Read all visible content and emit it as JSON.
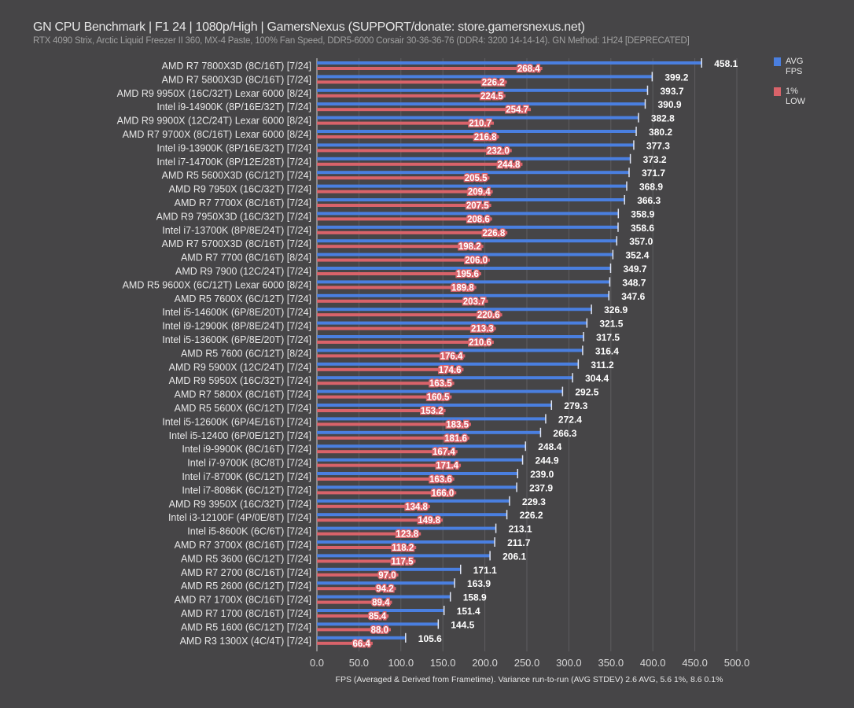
{
  "chart_data": {
    "type": "bar",
    "orientation": "horizontal",
    "title": "GN CPU Benchmark | F1 24 | 1080p/High | GamersNexus (SUPPORT/donate: store.gamersnexus.net)",
    "subtitle": "RTX 4090 Strix, Arctic Liquid Freezer II 360, MX-4 Paste, 100% Fan Speed, DDR5-6000 Corsair 30-36-36-76 (DDR4: 3200 14-14-14). GN Method: 1H24 [DEPRECATED]",
    "xlabel": "FPS (Averaged & Derived from Frametime). Variance run-to-run (AVG STDEV) 2.6 AVG, 5.6 1%, 8.6 0.1%",
    "xlim": [
      0,
      500
    ],
    "xticks": [
      "0.0",
      "50.0",
      "100.0",
      "150.0",
      "200.0",
      "250.0",
      "300.0",
      "350.0",
      "400.0",
      "450.0",
      "500.0"
    ],
    "grid": true,
    "legend_position": "right",
    "categories": [
      "AMD R7 7800X3D (8C/16T) [7/24]",
      "AMD R7 5800X3D (8C/16T) [7/24]",
      "AMD R9 9950X (16C/32T) Lexar 6000 [8/24]",
      "Intel i9-14900K (8P/16E/32T) [7/24]",
      "AMD R9 9900X (12C/24T) Lexar 6000 [8/24]",
      "AMD R7 9700X (8C/16T) Lexar 6000 [8/24]",
      "Intel i9-13900K (8P/16E/32T) [7/24]",
      "Intel i7-14700K (8P/12E/28T) [7/24]",
      "AMD R5 5600X3D (6C/12T) [7/24]",
      "AMD R9 7950X (16C/32T) [7/24]",
      "AMD R7 7700X (8C/16T) [7/24]",
      "AMD R9 7950X3D (16C/32T) [7/24]",
      "Intel i7-13700K (8P/8E/24T) [7/24]",
      "AMD R7 5700X3D (8C/16T) [7/24]",
      "AMD R7 7700 (8C/16T) [8/24]",
      "AMD R9 7900 (12C/24T) [7/24]",
      "AMD R5 9600X (6C/12T) Lexar 6000 [8/24]",
      "AMD R5 7600X (6C/12T) [7/24]",
      "Intel i5-14600K (6P/8E/20T) [7/24]",
      "Intel i9-12900K (8P/8E/24T) [7/24]",
      "Intel i5-13600K (6P/8E/20T) [7/24]",
      "AMD R5 7600 (6C/12T) [8/24]",
      "AMD R9 5900X (12C/24T) [7/24]",
      "AMD R9 5950X (16C/32T) [7/24]",
      "AMD R7 5800X (8C/16T) [7/24]",
      "AMD R5 5600X (6C/12T) [7/24]",
      "Intel i5-12600K (6P/4E/16T) [7/24]",
      "Intel i5-12400 (6P/0E/12T) [7/24]",
      "Intel i9-9900K (8C/16T) [7/24]",
      "Intel i7-9700K (8C/8T) [7/24]",
      "Intel i7-8700K (6C/12T) [7/24]",
      "Intel i7-8086K (6C/12T) [7/24]",
      "AMD R9 3950X (16C/32T) [7/24]",
      "Intel i3-12100F (4P/0E/8T) [7/24]",
      "Intel i5-8600K (6C/6T) [7/24]",
      "AMD R7 3700X (8C/16T) [7/24]",
      "AMD R5 3600 (6C/12T) [7/24]",
      "AMD R7 2700 (8C/16T) [7/24]",
      "AMD R5 2600 (6C/12T) [7/24]",
      "AMD R7 1700X (8C/16T) [7/24]",
      "AMD R7 1700 (8C/16T) [7/24]",
      "AMD R5 1600 (6C/12T) [7/24]",
      "AMD R3 1300X (4C/4T) [7/24]"
    ],
    "series": [
      {
        "name": "AVG FPS",
        "color": "#4a7fe0",
        "values": [
          458.1,
          399.2,
          393.7,
          390.9,
          382.8,
          380.2,
          377.3,
          373.2,
          371.7,
          368.9,
          366.3,
          358.9,
          358.6,
          357.0,
          352.4,
          349.7,
          348.7,
          347.6,
          326.9,
          321.5,
          317.5,
          316.4,
          311.2,
          304.4,
          292.5,
          279.3,
          272.4,
          266.3,
          248.4,
          244.9,
          239.0,
          237.9,
          229.3,
          226.2,
          213.1,
          211.7,
          206.1,
          171.1,
          163.9,
          158.9,
          151.4,
          144.5,
          105.6
        ]
      },
      {
        "name": "1% LOW",
        "color": "#d9636a",
        "values": [
          268.4,
          226.2,
          224.5,
          254.7,
          210.7,
          216.8,
          232.0,
          244.8,
          205.5,
          209.4,
          207.5,
          208.6,
          226.8,
          198.2,
          206.0,
          195.6,
          189.8,
          203.7,
          220.6,
          213.3,
          210.6,
          176.4,
          174.6,
          163.5,
          160.5,
          153.2,
          183.5,
          181.6,
          167.4,
          171.4,
          163.6,
          166.0,
          134.8,
          149.8,
          123.8,
          118.2,
          117.5,
          97.0,
          94.2,
          89.4,
          85.4,
          88.0,
          66.4
        ]
      }
    ],
    "legend": [
      {
        "line1": "AVG",
        "line2": "FPS"
      },
      {
        "line1": "1%",
        "line2": "LOW"
      }
    ]
  }
}
